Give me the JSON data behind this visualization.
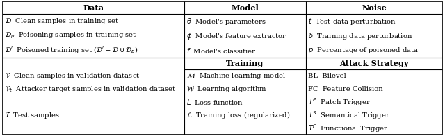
{
  "bg_color": "#ffffff",
  "border_color": "#000000",
  "header_row": [
    "Data",
    "Model",
    "Noise"
  ],
  "top_rows": [
    [
      "$\\mathcal{D}$  Clean samples in training set",
      "$\\theta$  Model's parameters",
      "$t$  Test data perturbation"
    ],
    [
      "$\\mathcal{D}_p$  Poisoning samples in training set",
      "$\\phi$  Model's feature extractor",
      "$\\delta$  Training data perturbation"
    ],
    [
      "$\\mathcal{D}'$  Poisoned training set ($\\mathcal{D}' = \\mathcal{D} \\cup \\mathcal{D}_p$)",
      "$f$  Model's classifier",
      "$p$  Percentage of poisoned data"
    ]
  ],
  "bottom_data_col": [
    "$\\mathcal{V}$  Clean samples in validation dataset",
    "$\\mathcal{V}_t$  Attacker target samples in validation dataset",
    "",
    "$\\mathcal{T}$  Test samples",
    ""
  ],
  "bottom_model_col": [
    "$\\mathcal{M}$  Machine learning model",
    "$\\mathcal{W}$  Learning algorithm",
    "$L$  Loss function",
    "$\\mathcal{L}$  Training loss (regularized)",
    ""
  ],
  "bottom_noise_col": [
    "BL  Bilevel",
    "FC  Feature Collision",
    "$T^P$  Patch Trigger",
    "$T^S$  Semantical Trigger",
    "$T^F$  Functional Trigger"
  ],
  "fontsize": 7.2,
  "header_fontsize": 8.2
}
